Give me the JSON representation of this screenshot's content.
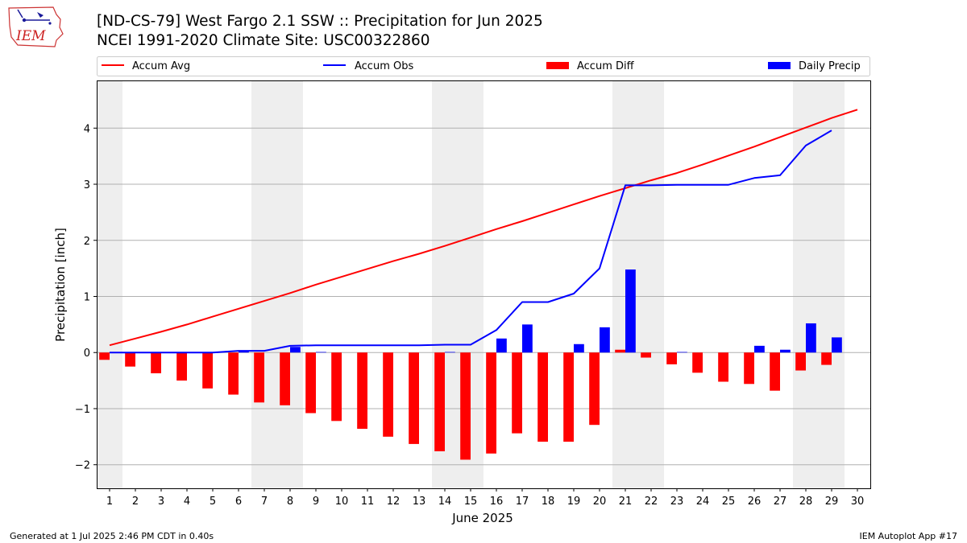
{
  "header": {
    "title_line1": "[ND-CS-79] West Fargo 2.1 SSW :: Precipitation for Jun 2025",
    "title_line2": "NCEI 1991-2020 Climate Site: USC00322860",
    "logo_text": "IEM"
  },
  "footer": {
    "left": "Generated at 1 Jul 2025 2:46 PM CDT in 0.40s",
    "right": "IEM Autoplot App #17"
  },
  "chart_data": {
    "type": "bar",
    "xlabel": "June 2025",
    "ylabel": "Precipitation [inch]",
    "ylim": [
      -2.42,
      4.85
    ],
    "xlim": [
      0.5,
      30.5
    ],
    "yticks": [
      -2,
      -1,
      0,
      1,
      2,
      3,
      4
    ],
    "ytick_labels": [
      "−2",
      "−1",
      "0",
      "1",
      "2",
      "3",
      "4"
    ],
    "days": [
      1,
      2,
      3,
      4,
      5,
      6,
      7,
      8,
      9,
      10,
      11,
      12,
      13,
      14,
      15,
      16,
      17,
      18,
      19,
      20,
      21,
      22,
      23,
      24,
      25,
      26,
      27,
      28,
      29,
      30
    ],
    "grid": "horizontal",
    "legend_position": "top",
    "weekend_shading": [
      [
        0.5,
        1.5
      ],
      [
        6.5,
        8.5
      ],
      [
        13.5,
        15.5
      ],
      [
        20.5,
        22.5
      ],
      [
        27.5,
        29.5
      ]
    ],
    "colors": {
      "avg": "#ff0000",
      "obs": "#0000ff",
      "diff": "#ff0000",
      "daily": "#0000ff",
      "shade": "#eeeeee",
      "grid": "#b0b0b0"
    },
    "legend": [
      "Accum Avg",
      "Accum Obs",
      "Accum Diff",
      "Daily Precip"
    ],
    "series": [
      {
        "name": "Accum Avg",
        "kind": "line",
        "values": [
          0.13,
          0.25,
          0.37,
          0.5,
          0.64,
          0.78,
          0.92,
          1.06,
          1.21,
          1.35,
          1.49,
          1.63,
          1.76,
          1.9,
          2.05,
          2.2,
          2.34,
          2.49,
          2.64,
          2.79,
          2.93,
          3.07,
          3.2,
          3.35,
          3.51,
          3.67,
          3.84,
          4.01,
          4.18,
          4.33
        ]
      },
      {
        "name": "Accum Obs",
        "kind": "line",
        "values": [
          0.0,
          0.0,
          0.0,
          0.0,
          0.0,
          0.03,
          0.03,
          0.12,
          0.13,
          0.13,
          0.13,
          0.13,
          0.13,
          0.14,
          0.14,
          0.4,
          0.9,
          0.9,
          1.05,
          1.5,
          2.98,
          2.98,
          2.99,
          2.99,
          2.99,
          3.11,
          3.16,
          3.69,
          3.96,
          null
        ]
      },
      {
        "name": "Accum Diff",
        "kind": "bar",
        "values": [
          -0.13,
          -0.25,
          -0.37,
          -0.5,
          -0.64,
          -0.75,
          -0.89,
          -0.94,
          -1.08,
          -1.22,
          -1.36,
          -1.5,
          -1.63,
          -1.76,
          -1.91,
          -1.8,
          -1.44,
          -1.59,
          -1.59,
          -1.29,
          0.05,
          -0.09,
          -0.21,
          -0.36,
          -0.52,
          -0.56,
          -0.68,
          -0.32,
          -0.22,
          null
        ]
      },
      {
        "name": "Daily Precip",
        "kind": "bar",
        "values": [
          0,
          0,
          0,
          0,
          0,
          0.03,
          0,
          0.1,
          0.01,
          0,
          0,
          0,
          0,
          0.01,
          0,
          0.25,
          0.5,
          0,
          0.15,
          0.45,
          1.48,
          0,
          0.01,
          0,
          0,
          0.12,
          0.05,
          0.52,
          0.27,
          null
        ]
      }
    ]
  }
}
